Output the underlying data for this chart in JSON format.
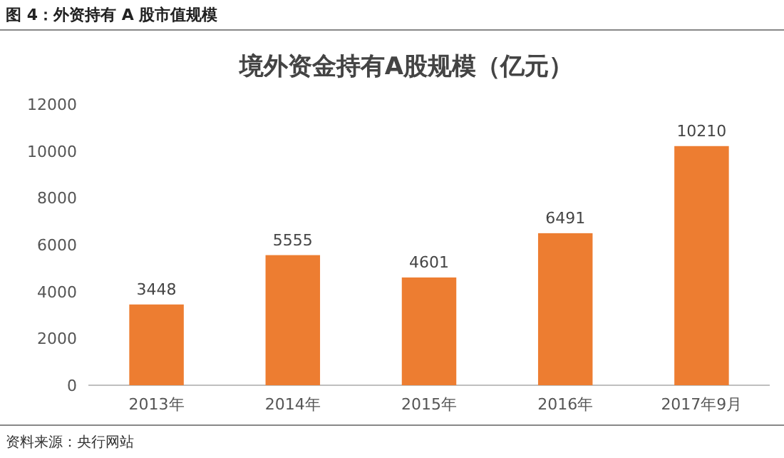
{
  "chart_data": {
    "type": "bar",
    "subtitle": "图 4：外资持有 A 股市值规模",
    "title": "境外资金持有A股规模（亿元）",
    "categories": [
      "2013年",
      "2014年",
      "2015年",
      "2016年",
      "2017年9月"
    ],
    "values": [
      3448,
      5555,
      4601,
      6491,
      10210
    ],
    "color": "#ed7d31",
    "ylim": [
      0,
      12000
    ],
    "yticks": [
      0,
      2000,
      4000,
      6000,
      8000,
      10000,
      12000
    ],
    "grid": false,
    "data_labels": true,
    "annotations": [
      "资料来源：央行网站"
    ]
  }
}
